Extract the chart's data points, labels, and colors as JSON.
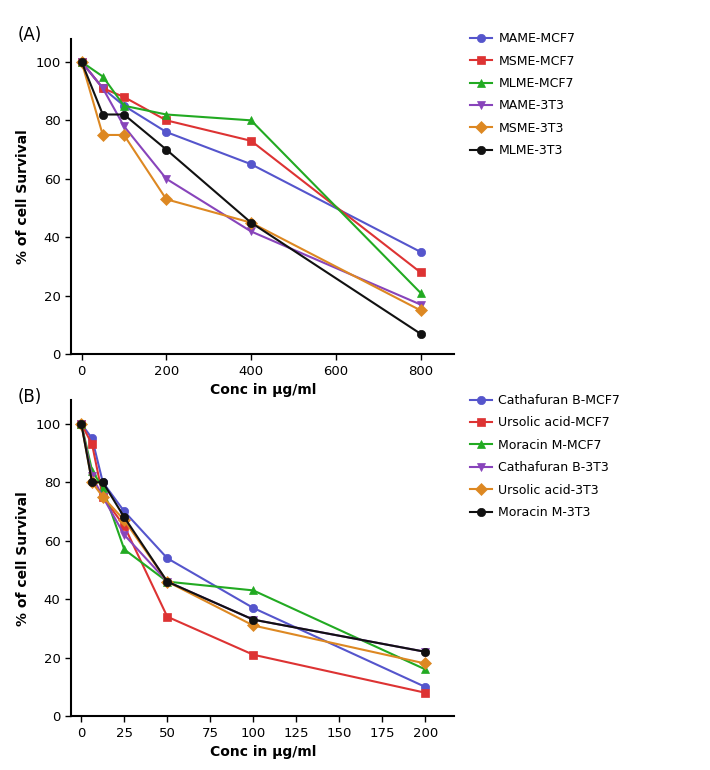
{
  "panel_A": {
    "x": [
      0,
      50,
      100,
      200,
      400,
      800
    ],
    "series": [
      {
        "label": "MAME-MCF7",
        "color": "#5555CC",
        "marker": "o",
        "markersize": 6,
        "values": [
          100,
          91,
          85,
          76,
          65,
          35
        ]
      },
      {
        "label": "MSME-MCF7",
        "color": "#DD3333",
        "marker": "s",
        "markersize": 6,
        "values": [
          100,
          91,
          88,
          80,
          73,
          28
        ]
      },
      {
        "label": "MLME-MCF7",
        "color": "#22AA22",
        "marker": "^",
        "markersize": 6,
        "values": [
          100,
          95,
          85,
          82,
          80,
          21
        ]
      },
      {
        "label": "MAME-3T3",
        "color": "#8844BB",
        "marker": "v",
        "markersize": 6,
        "values": [
          100,
          91,
          78,
          60,
          42,
          17
        ]
      },
      {
        "label": "MSME-3T3",
        "color": "#DD8822",
        "marker": "D",
        "markersize": 6,
        "values": [
          100,
          75,
          75,
          53,
          45,
          15
        ]
      },
      {
        "label": "MLME-3T3",
        "color": "#111111",
        "marker": "o",
        "markersize": 6,
        "values": [
          100,
          82,
          82,
          70,
          45,
          7
        ]
      }
    ],
    "xlabel": "Conc in μg/ml",
    "ylabel": "% of cell Survival",
    "xlim": [
      -25,
      880
    ],
    "ylim": [
      0,
      108
    ],
    "xticks": [
      0,
      200,
      400,
      600,
      800
    ],
    "yticks": [
      0,
      20,
      40,
      60,
      80,
      100
    ],
    "panel_label": "(A)"
  },
  "panel_B": {
    "x": [
      0,
      6.25,
      12.5,
      25,
      50,
      100,
      200
    ],
    "series": [
      {
        "label": "Cathafuran B-MCF7",
        "color": "#5555CC",
        "marker": "o",
        "markersize": 6,
        "values": [
          100,
          95,
          80,
          70,
          54,
          37,
          10
        ]
      },
      {
        "label": "Ursolic acid-MCF7",
        "color": "#DD3333",
        "marker": "s",
        "markersize": 6,
        "values": [
          100,
          93,
          75,
          65,
          34,
          21,
          8
        ]
      },
      {
        "label": "Moracin M-MCF7",
        "color": "#22AA22",
        "marker": "^",
        "markersize": 6,
        "values": [
          100,
          84,
          78,
          57,
          46,
          43,
          16
        ]
      },
      {
        "label": "Cathafuran B-3T3",
        "color": "#8844BB",
        "marker": "v",
        "markersize": 6,
        "values": [
          100,
          82,
          75,
          62,
          46,
          33,
          22
        ]
      },
      {
        "label": "Ursolic acid-3T3",
        "color": "#DD8822",
        "marker": "D",
        "markersize": 6,
        "values": [
          100,
          80,
          75,
          67,
          46,
          31,
          18
        ]
      },
      {
        "label": "Moracin M-3T3",
        "color": "#111111",
        "marker": "o",
        "markersize": 6,
        "values": [
          100,
          80,
          80,
          68,
          46,
          33,
          22
        ]
      }
    ],
    "xlabel": "Conc in μg/ml",
    "ylabel": "% of cell Survival",
    "xlim": [
      -6,
      217
    ],
    "ylim": [
      0,
      108
    ],
    "xticks": [
      0,
      25,
      50,
      75,
      100,
      125,
      150,
      175,
      200
    ],
    "yticks": [
      0,
      20,
      40,
      60,
      80,
      100
    ],
    "panel_label": "(B)"
  },
  "fig_width": 7.1,
  "fig_height": 7.7,
  "dpi": 100
}
